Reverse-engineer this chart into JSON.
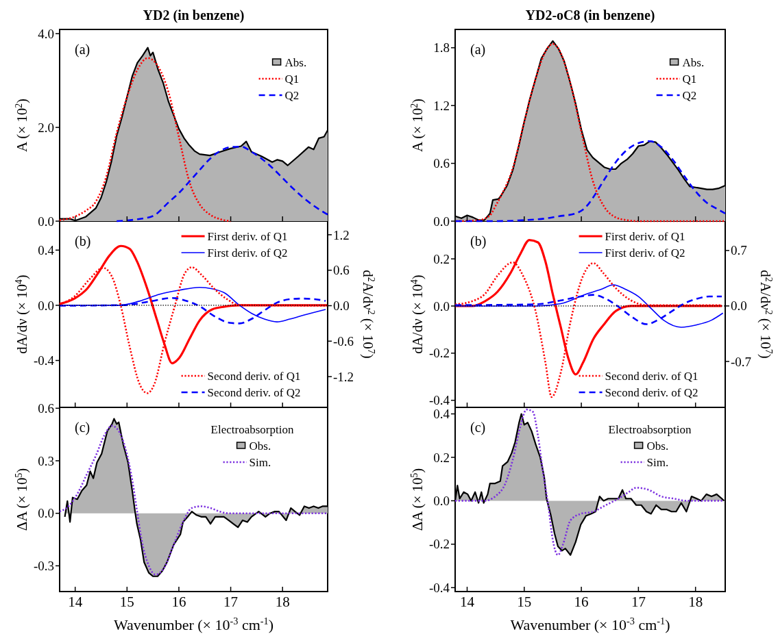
{
  "chart_data": [
    {
      "type": "line",
      "title": "YD2 (in benzene)",
      "ylabel": "A (× 10$^{2}$)",
      "annotations": [
        "(a)"
      ],
      "xlim": [
        13.7,
        18.87
      ],
      "xticks": [
        14,
        15,
        16,
        17,
        18
      ],
      "ylim": [
        0,
        4.09
      ],
      "yticks": [
        {
          "value": 0,
          "label": "0.0"
        },
        {
          "value": 2,
          "label": "2.0"
        },
        {
          "value": 4,
          "label": "4.0"
        }
      ],
      "tick_labels": "y",
      "legend": "top right",
      "series": [
        {
          "name": "Abs.",
          "type": "area",
          "color": "#b3b3b3",
          "x": [
            13.7,
            13.9,
            14.0,
            14.2,
            14.4,
            14.5,
            14.6,
            14.7,
            14.8,
            14.9,
            15.0,
            15.1,
            15.2,
            15.3,
            15.4,
            15.45,
            15.5,
            15.6,
            15.7,
            15.8,
            15.9,
            16.0,
            16.1,
            16.2,
            16.3,
            16.4,
            16.6,
            16.8,
            17.0,
            17.2,
            17.3,
            17.4,
            17.6,
            17.8,
            17.9,
            18.0,
            18.1,
            18.3,
            18.5,
            18.6,
            18.7,
            18.8,
            18.87
          ],
          "values": [
            0.05,
            0.05,
            0.01,
            0.09,
            0.28,
            0.5,
            0.84,
            1.28,
            1.82,
            2.21,
            2.65,
            3.09,
            3.38,
            3.53,
            3.7,
            3.53,
            3.6,
            3.23,
            2.94,
            2.55,
            2.26,
            1.97,
            1.77,
            1.62,
            1.5,
            1.43,
            1.4,
            1.48,
            1.55,
            1.6,
            1.7,
            1.48,
            1.38,
            1.26,
            1.31,
            1.28,
            1.19,
            1.38,
            1.58,
            1.53,
            1.77,
            1.8,
            1.94
          ]
        },
        {
          "name": "Q1",
          "type": "line",
          "color": "#ff0000",
          "line_style": "dotted",
          "x": [
            13.7,
            14.0,
            14.2,
            14.4,
            14.6,
            14.8,
            15.0,
            15.2,
            15.4,
            15.6,
            15.8,
            16.0,
            16.2,
            16.4,
            16.6,
            16.8,
            17.0
          ],
          "values": [
            0.02,
            0.1,
            0.22,
            0.42,
            0.95,
            1.88,
            2.65,
            3.23,
            3.48,
            3.3,
            2.75,
            1.8,
            0.85,
            0.36,
            0.14,
            0.04,
            0.0
          ]
        },
        {
          "name": "Q2",
          "type": "line",
          "color": "#0000ff",
          "line_style": "dashed",
          "x": [
            14.8,
            15.2,
            15.5,
            15.8,
            16.0,
            16.2,
            16.4,
            16.6,
            16.8,
            17.0,
            17.2,
            17.4,
            17.6,
            17.8,
            18.0,
            18.2,
            18.4,
            18.6,
            18.87
          ],
          "values": [
            0.0,
            0.04,
            0.11,
            0.4,
            0.6,
            0.84,
            1.09,
            1.33,
            1.5,
            1.58,
            1.59,
            1.48,
            1.33,
            1.14,
            0.92,
            0.7,
            0.5,
            0.33,
            0.14
          ]
        }
      ]
    },
    {
      "type": "line",
      "title": "YD2-oC8 (in benzene)",
      "ylabel": "A (× 10$^{2}$)",
      "annotations": [
        "(a)"
      ],
      "xlim": [
        13.79,
        18.52
      ],
      "xticks": [
        14,
        15,
        16,
        17,
        18
      ],
      "ylim": [
        0,
        1.99
      ],
      "yticks": [
        {
          "value": 0,
          "label": "0.0"
        },
        {
          "value": 0.6,
          "label": "0.6"
        },
        {
          "value": 1.2,
          "label": "1.2"
        },
        {
          "value": 1.8,
          "label": "1.8"
        }
      ],
      "tick_labels": "y",
      "legend": "top right",
      "series": [
        {
          "name": "Abs.",
          "type": "area",
          "color": "#b3b3b3",
          "x": [
            13.8,
            13.9,
            14.0,
            14.1,
            14.2,
            14.3,
            14.4,
            14.45,
            14.55,
            14.6,
            14.7,
            14.8,
            14.9,
            15.0,
            15.1,
            15.2,
            15.3,
            15.4,
            15.5,
            15.6,
            15.7,
            15.8,
            15.9,
            16.0,
            16.1,
            16.2,
            16.3,
            16.4,
            16.5,
            16.6,
            16.7,
            16.8,
            16.9,
            17.0,
            17.1,
            17.2,
            17.3,
            17.4,
            17.5,
            17.6,
            17.7,
            17.8,
            17.9,
            18.0,
            18.1,
            18.2,
            18.3,
            18.4,
            18.52
          ],
          "values": [
            0.05,
            0.03,
            0.06,
            0.04,
            0.01,
            0.01,
            0.08,
            0.22,
            0.23,
            0.27,
            0.37,
            0.53,
            0.77,
            1.03,
            1.27,
            1.48,
            1.69,
            1.79,
            1.87,
            1.79,
            1.66,
            1.45,
            1.22,
            0.95,
            0.74,
            0.66,
            0.61,
            0.56,
            0.54,
            0.54,
            0.6,
            0.64,
            0.7,
            0.78,
            0.79,
            0.83,
            0.82,
            0.76,
            0.69,
            0.61,
            0.53,
            0.44,
            0.36,
            0.35,
            0.34,
            0.33,
            0.33,
            0.34,
            0.37
          ]
        },
        {
          "name": "Q1",
          "type": "line",
          "color": "#ff0000",
          "line_style": "dotted",
          "x": [
            13.8,
            14.2,
            14.4,
            14.5,
            14.6,
            14.8,
            15.0,
            15.2,
            15.4,
            15.5,
            15.6,
            15.8,
            16.0,
            16.2,
            16.4,
            16.6,
            16.8,
            17.0,
            18.52
          ],
          "values": [
            0.0,
            0.01,
            0.06,
            0.16,
            0.27,
            0.55,
            1.03,
            1.48,
            1.79,
            1.84,
            1.79,
            1.45,
            0.93,
            0.42,
            0.15,
            0.04,
            0.01,
            0.0,
            0.0
          ]
        },
        {
          "name": "Q2",
          "type": "line",
          "color": "#0000ff",
          "line_style": "dashed",
          "x": [
            13.8,
            14.5,
            15.0,
            15.4,
            15.6,
            15.9,
            16.1,
            16.2,
            16.4,
            16.6,
            16.8,
            17.0,
            17.2,
            17.4,
            17.6,
            17.8,
            18.0,
            18.2,
            18.4,
            18.52
          ],
          "values": [
            0.0,
            0.0,
            0.01,
            0.03,
            0.05,
            0.08,
            0.16,
            0.24,
            0.43,
            0.61,
            0.74,
            0.81,
            0.83,
            0.77,
            0.64,
            0.47,
            0.31,
            0.19,
            0.12,
            0.08
          ]
        }
      ]
    },
    {
      "type": "line",
      "ylabel": "dA/dν (× 10$^{4}$)",
      "y2label": "d$^{2}$A/dν$^{2}$ (× 10$^{7}$)",
      "annotations": [
        "(b)"
      ],
      "xlim": [
        13.7,
        18.87
      ],
      "xticks": [
        14,
        15,
        16,
        17,
        18
      ],
      "ylim": [
        -0.74,
        0.61
      ],
      "yticks": [
        {
          "value": -0.4,
          "label": "-0.4"
        },
        {
          "value": 0,
          "label": "0.0"
        },
        {
          "value": 0.4,
          "label": "0.4"
        }
      ],
      "y2lim": [
        -1.72,
        1.43
      ],
      "y2ticks": [
        {
          "value": -1.2,
          "label": "-1.2"
        },
        {
          "value": -0.6,
          "label": "-0.6"
        },
        {
          "value": 0,
          "label": "0.0"
        },
        {
          "value": 0.6,
          "label": "0.6"
        },
        {
          "value": 1.2,
          "label": "1.2"
        }
      ],
      "tick_labels": "y",
      "legend": "right",
      "ref_lines": [
        {
          "axis": "y",
          "value": 0,
          "color": "#000000",
          "line_style": "dotted"
        }
      ],
      "series": [
        {
          "name": "First deriv. of Q1",
          "type": "line",
          "color": "#ff0000",
          "line_style": "solid",
          "x": [
            13.7,
            13.99,
            14.23,
            14.47,
            14.66,
            14.88,
            15.05,
            15.19,
            15.39,
            15.58,
            15.72,
            15.87,
            16.01,
            16.21,
            16.4,
            16.64,
            16.88,
            17.17,
            18.86
          ],
          "values": [
            0.01,
            0.05,
            0.12,
            0.25,
            0.36,
            0.43,
            0.41,
            0.32,
            0.12,
            -0.11,
            -0.28,
            -0.42,
            -0.38,
            -0.24,
            -0.11,
            -0.03,
            -0.01,
            0.0,
            0.0
          ]
        },
        {
          "name": "First deriv. of Q2",
          "type": "line",
          "color": "#0000ff",
          "line_style": "solid",
          "x": [
            13.7,
            14.86,
            15.24,
            15.63,
            16.01,
            16.4,
            16.64,
            16.88,
            17.17,
            17.41,
            17.65,
            17.89,
            18.14,
            18.42,
            18.83
          ],
          "values": [
            0.0,
            0.0,
            0.03,
            0.08,
            0.11,
            0.13,
            0.12,
            0.09,
            0.0,
            -0.06,
            -0.1,
            -0.12,
            -0.1,
            -0.07,
            -0.03
          ]
        },
        {
          "name": "Second deriv. of Q1",
          "type": "line",
          "axis": "y2",
          "color": "#ff0000",
          "line_style": "dotted",
          "x": [
            13.7,
            13.99,
            14.28,
            14.54,
            14.71,
            14.88,
            15.05,
            15.24,
            15.39,
            15.53,
            15.72,
            15.92,
            16.11,
            16.25,
            16.45,
            16.69,
            16.93,
            17.17,
            18.86
          ],
          "values": [
            0.02,
            0.16,
            0.45,
            0.64,
            0.49,
            0.0,
            -0.69,
            -1.32,
            -1.48,
            -1.32,
            -0.64,
            -0.01,
            0.54,
            0.65,
            0.51,
            0.28,
            0.11,
            0.01,
            0.0
          ]
        },
        {
          "name": "Second deriv. of Q2",
          "type": "line",
          "axis": "y2",
          "color": "#0000ff",
          "line_style": "dashed",
          "x": [
            13.7,
            14.95,
            15.43,
            15.87,
            16.11,
            16.4,
            16.69,
            16.98,
            17.17,
            17.41,
            17.65,
            17.89,
            18.14,
            18.38,
            18.62,
            18.83
          ],
          "values": [
            0.0,
            0.01,
            0.07,
            0.13,
            0.09,
            -0.01,
            -0.18,
            -0.29,
            -0.3,
            -0.22,
            -0.08,
            0.05,
            0.11,
            0.12,
            0.11,
            0.08
          ]
        }
      ]
    },
    {
      "type": "line",
      "ylabel": "dA/dν (× 10$^{4}$)",
      "y2label": "d$^{2}$A/dν$^{2}$ (× 10$^{7}$)",
      "annotations": [
        "(b)"
      ],
      "xlim": [
        13.79,
        18.52
      ],
      "xticks": [
        14,
        15,
        16,
        17,
        18
      ],
      "ylim": [
        -0.43,
        0.36
      ],
      "yticks": [
        {
          "value": -0.4,
          "label": "-0.4"
        },
        {
          "value": -0.2,
          "label": "-0.2"
        },
        {
          "value": 0,
          "label": "0.0"
        },
        {
          "value": 0.2,
          "label": "0.2"
        }
      ],
      "y2lim": [
        -1.28,
        1.07
      ],
      "y2ticks": [
        {
          "value": -0.7,
          "label": "-0.7"
        },
        {
          "value": 0,
          "label": "0.0"
        },
        {
          "value": 0.7,
          "label": "0.7"
        }
      ],
      "tick_labels": "y",
      "legend": "right",
      "ref_lines": [
        {
          "axis": "y",
          "value": 0,
          "color": "#000000",
          "line_style": "dotted"
        }
      ],
      "series": [
        {
          "name": "First deriv. of Q1",
          "type": "line",
          "color": "#ff0000",
          "line_style": "solid",
          "x": [
            13.79,
            14.09,
            14.31,
            14.53,
            14.76,
            14.93,
            15.09,
            15.24,
            15.37,
            15.5,
            15.64,
            15.77,
            15.9,
            16.03,
            16.21,
            16.39,
            16.61,
            16.87,
            17.14,
            18.46
          ],
          "values": [
            0.0,
            0.0,
            0.02,
            0.06,
            0.14,
            0.22,
            0.28,
            0.27,
            0.19,
            0.05,
            -0.09,
            -0.22,
            -0.29,
            -0.24,
            -0.14,
            -0.08,
            -0.02,
            0.0,
            0.0,
            0.0
          ]
        },
        {
          "name": "First deriv. of Q2",
          "type": "line",
          "color": "#0000ff",
          "line_style": "solid",
          "x": [
            13.79,
            15.2,
            15.64,
            16.08,
            16.34,
            16.56,
            16.78,
            17.0,
            17.22,
            17.44,
            17.75,
            18.02,
            18.28,
            18.48
          ],
          "values": [
            0.0,
            0.0,
            0.01,
            0.05,
            0.07,
            0.09,
            0.07,
            0.04,
            -0.01,
            -0.06,
            -0.09,
            -0.08,
            -0.06,
            -0.03
          ]
        },
        {
          "name": "Second deriv. of Q1",
          "type": "line",
          "axis": "y2",
          "color": "#ff0000",
          "line_style": "dotted",
          "x": [
            13.79,
            14.09,
            14.31,
            14.53,
            14.8,
            14.98,
            15.2,
            15.37,
            15.48,
            15.64,
            15.81,
            16.03,
            16.21,
            16.39,
            16.61,
            16.87,
            17.14,
            18.46
          ],
          "values": [
            0.02,
            0.06,
            0.15,
            0.38,
            0.55,
            0.38,
            -0.07,
            -0.71,
            -1.15,
            -0.84,
            -0.2,
            0.38,
            0.54,
            0.41,
            0.22,
            0.07,
            0.01,
            0.01
          ]
        },
        {
          "name": "Second deriv. of Q2",
          "type": "line",
          "axis": "y2",
          "color": "#0000ff",
          "line_style": "dashed",
          "x": [
            13.79,
            15.2,
            15.64,
            15.99,
            16.21,
            16.43,
            16.65,
            16.87,
            17.14,
            17.36,
            17.58,
            17.8,
            18.02,
            18.24,
            18.46
          ],
          "values": [
            0.01,
            0.02,
            0.07,
            0.12,
            0.14,
            0.09,
            -0.01,
            -0.13,
            -0.23,
            -0.17,
            -0.07,
            0.03,
            0.09,
            0.12,
            0.12
          ]
        }
      ]
    },
    {
      "type": "line",
      "xlabel": "Wavenumber (× 10$^{-3}$ cm$^{-1}$)",
      "ylabel": "ΔA (× 10$^{5}$)",
      "legend_title": "Electroabsorption",
      "annotations": [
        "(c)"
      ],
      "xlim": [
        13.7,
        18.87
      ],
      "xticks": [
        14,
        15,
        16,
        17,
        18
      ],
      "ylim": [
        -0.447,
        0.605
      ],
      "yticks": [
        {
          "value": -0.3,
          "label": "-0.3"
        },
        {
          "value": 0,
          "label": "0.0"
        },
        {
          "value": 0.3,
          "label": "0.3"
        },
        {
          "value": 0.6,
          "label": "0.6"
        }
      ],
      "legend": "top right",
      "series": [
        {
          "name": "Obs.",
          "type": "area",
          "color": "#b3b3b3",
          "x": [
            13.8,
            13.85,
            13.9,
            13.95,
            14.04,
            14.13,
            14.22,
            14.29,
            14.35,
            14.42,
            14.51,
            14.62,
            14.71,
            14.75,
            14.8,
            14.84,
            14.93,
            15.02,
            15.1,
            15.15,
            15.19,
            15.26,
            15.33,
            15.42,
            15.5,
            15.59,
            15.68,
            15.77,
            15.9,
            16.03,
            16.08,
            16.17,
            16.25,
            16.34,
            16.43,
            16.52,
            16.61,
            16.7,
            16.79,
            16.87,
            16.96,
            17.05,
            17.14,
            17.23,
            17.32,
            17.4,
            17.54,
            17.67,
            17.76,
            17.85,
            17.93,
            18.07,
            18.16,
            18.24,
            18.33,
            18.42,
            18.51,
            18.6,
            18.69,
            18.77,
            18.87
          ],
          "values": [
            -0.02,
            0.07,
            -0.05,
            0.09,
            0.08,
            0.13,
            0.16,
            0.24,
            0.2,
            0.29,
            0.34,
            0.47,
            0.51,
            0.54,
            0.51,
            0.52,
            0.39,
            0.29,
            0.13,
            0.02,
            -0.06,
            -0.15,
            -0.28,
            -0.34,
            -0.36,
            -0.36,
            -0.33,
            -0.28,
            -0.18,
            -0.12,
            -0.05,
            -0.02,
            0.01,
            -0.01,
            -0.02,
            -0.02,
            -0.06,
            -0.02,
            -0.02,
            -0.02,
            -0.04,
            -0.06,
            -0.08,
            -0.04,
            -0.05,
            -0.02,
            0.01,
            -0.02,
            0.0,
            0.01,
            0.01,
            -0.04,
            0.03,
            0.01,
            -0.01,
            0.04,
            0.03,
            0.04,
            0.03,
            0.04,
            0.04
          ]
        },
        {
          "name": "Sim.",
          "type": "line",
          "color": "#7b2fe0",
          "line_style": "dotted",
          "x": [
            13.7,
            13.87,
            14.04,
            14.22,
            14.4,
            14.57,
            14.71,
            14.84,
            14.97,
            15.1,
            15.19,
            15.28,
            15.42,
            15.55,
            15.72,
            15.9,
            16.08,
            16.25,
            16.43,
            16.61,
            16.79,
            16.96,
            18.87
          ],
          "values": [
            0.01,
            0.04,
            0.11,
            0.22,
            0.33,
            0.45,
            0.5,
            0.47,
            0.37,
            0.19,
            0.02,
            -0.15,
            -0.3,
            -0.35,
            -0.31,
            -0.18,
            -0.05,
            0.03,
            0.04,
            0.03,
            0.01,
            0.0,
            0.0
          ]
        }
      ]
    },
    {
      "type": "line",
      "xlabel": "Wavenumber (× 10$^{-3}$ cm$^{-1}$)",
      "ylabel": "ΔA (× 10$^{5}$)",
      "legend_title": "Electroabsorption",
      "annotations": [
        "(c)"
      ],
      "xlim": [
        13.79,
        18.52
      ],
      "xticks": [
        14,
        15,
        16,
        17,
        18
      ],
      "ylim": [
        -0.418,
        0.43
      ],
      "yticks": [
        {
          "value": -0.4,
          "label": "-0.4"
        },
        {
          "value": -0.2,
          "label": "-0.2"
        },
        {
          "value": 0,
          "label": "0.0"
        },
        {
          "value": 0.2,
          "label": "0.2"
        },
        {
          "value": 0.4,
          "label": "0.4"
        }
      ],
      "legend": "top right",
      "series": [
        {
          "name": "Obs.",
          "type": "area",
          "color": "#b3b3b3",
          "x": [
            13.79,
            13.83,
            13.87,
            13.94,
            14.01,
            14.07,
            14.14,
            14.2,
            14.25,
            14.29,
            14.36,
            14.4,
            14.49,
            14.58,
            14.62,
            14.71,
            14.78,
            14.84,
            14.91,
            14.95,
            15.0,
            15.06,
            15.13,
            15.2,
            15.28,
            15.35,
            15.39,
            15.46,
            15.53,
            15.59,
            15.66,
            15.72,
            15.81,
            15.9,
            15.99,
            16.08,
            16.17,
            16.25,
            16.32,
            16.39,
            16.47,
            16.56,
            16.65,
            16.72,
            16.78,
            16.87,
            16.96,
            17.05,
            17.14,
            17.22,
            17.31,
            17.4,
            17.49,
            17.58,
            17.66,
            17.75,
            17.84,
            17.93,
            18.02,
            18.1,
            18.19,
            18.28,
            18.37,
            18.46,
            18.5
          ],
          "values": [
            0.0,
            0.07,
            0.01,
            0.04,
            0.03,
            0.0,
            0.04,
            -0.01,
            0.04,
            -0.01,
            0.03,
            0.08,
            0.08,
            0.09,
            0.16,
            0.18,
            0.22,
            0.27,
            0.36,
            0.4,
            0.35,
            0.36,
            0.32,
            0.26,
            0.2,
            0.11,
            0.01,
            -0.06,
            -0.15,
            -0.21,
            -0.23,
            -0.22,
            -0.25,
            -0.19,
            -0.11,
            -0.07,
            -0.06,
            -0.05,
            0.02,
            0.0,
            0.01,
            0.01,
            0.01,
            0.05,
            0.01,
            0.01,
            -0.02,
            -0.02,
            -0.05,
            -0.06,
            -0.02,
            -0.04,
            -0.04,
            -0.05,
            -0.05,
            -0.01,
            -0.05,
            0.02,
            0.01,
            0.0,
            0.03,
            0.02,
            0.03,
            0.01,
            0.0
          ]
        },
        {
          "name": "Sim.",
          "type": "line",
          "color": "#7b2fe0",
          "line_style": "dotted",
          "x": [
            13.79,
            14.31,
            14.49,
            14.67,
            14.8,
            14.93,
            15.04,
            15.15,
            15.24,
            15.33,
            15.42,
            15.5,
            15.59,
            15.68,
            15.81,
            15.99,
            16.21,
            16.43,
            16.65,
            16.83,
            16.96,
            17.18,
            17.4,
            17.62,
            17.84,
            18.5
          ],
          "values": [
            0.0,
            0.0,
            0.02,
            0.08,
            0.19,
            0.34,
            0.42,
            0.41,
            0.3,
            0.13,
            -0.02,
            -0.18,
            -0.25,
            -0.2,
            -0.09,
            -0.06,
            -0.05,
            -0.02,
            0.01,
            0.04,
            0.06,
            0.05,
            0.02,
            0.01,
            0.0,
            0.0
          ]
        }
      ]
    }
  ]
}
